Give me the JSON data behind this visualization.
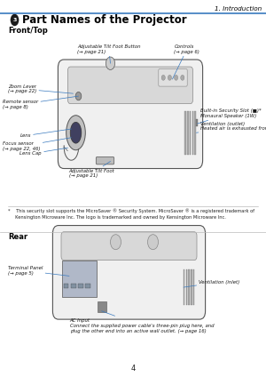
{
  "page_bg": "#ffffff",
  "header_line_color": "#3a7abf",
  "header_text": "1. Introduction",
  "title_text": "Part Names of the Projector",
  "section1_label": "Front/Top",
  "section2_label": "Rear",
  "footer_text": "4",
  "footnote_text": "*    This security slot supports the MicroSaver ® Security System. MicroSaver ® is a registered trademark of\n     Kensington Microware Inc. The logo is trademarked and owned by Kensington Microware Inc.",
  "label_color": "#1a1a1a",
  "line_color": "#3a7abf",
  "body_fill": "#f0f0f0",
  "body_edge": "#555555",
  "panel_fill": "#d8d8d8",
  "vent_fill": "#aaaaaa",
  "term_fill": "#b0b8c8",
  "connector_fill": "#8090a0",
  "lens_fill": "#c0c0c0",
  "lens_inner_fill": "#404060"
}
